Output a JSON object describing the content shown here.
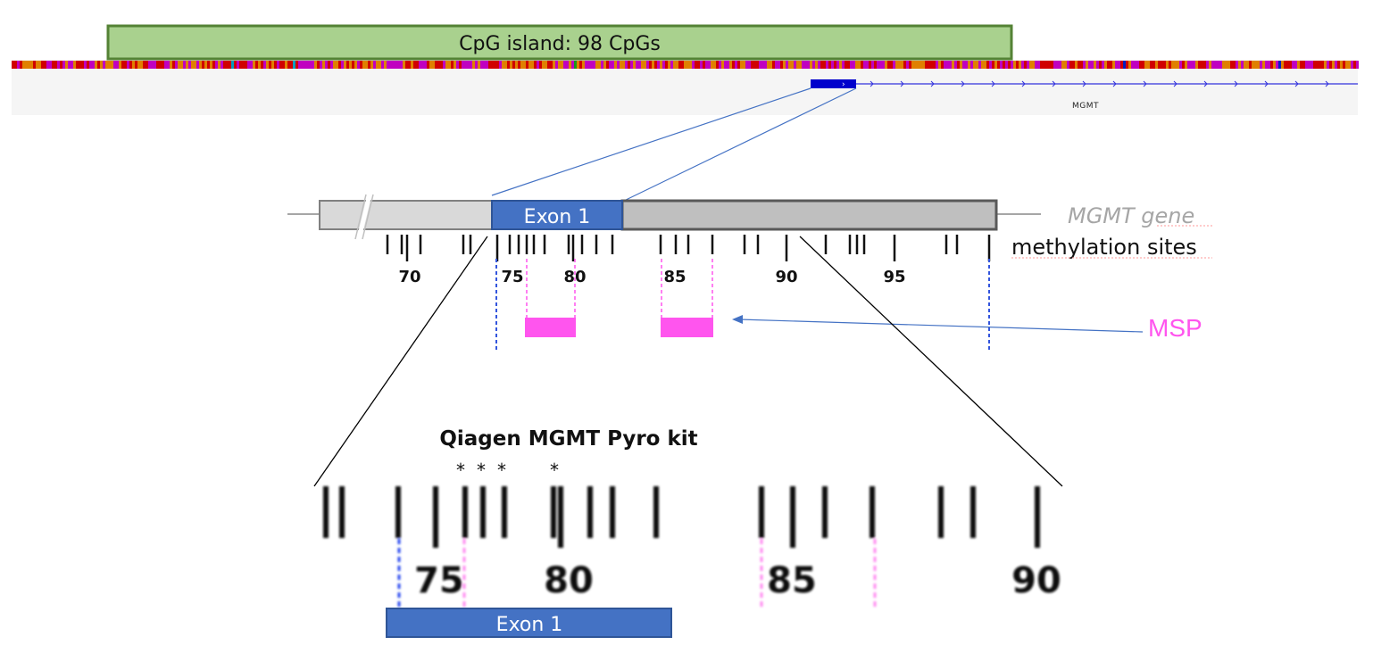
{
  "cpg_island": {
    "label": "CpG island: 98 CpGs",
    "fill": "#a9d18e",
    "stroke": "#548235"
  },
  "gene_track": {
    "gene_name": "MGMT",
    "color": "#0000cc"
  },
  "overview": {
    "exon_label": "Exon 1",
    "exon_color": "#4472c4",
    "gene_label": "MGMT gene",
    "methylation_label": "methylation sites",
    "tick_labels": [
      "70",
      "75",
      "80",
      "85",
      "90",
      "95"
    ],
    "msp_label": "MSP",
    "msp_color": "#ff55ee"
  },
  "zoom": {
    "title": "Qiagen MGMT Pyro kit",
    "stars": [
      "*",
      "*",
      "*",
      "*"
    ],
    "tick_labels": [
      "75",
      "80",
      "85",
      "90"
    ],
    "exon_label": "Exon 1"
  }
}
